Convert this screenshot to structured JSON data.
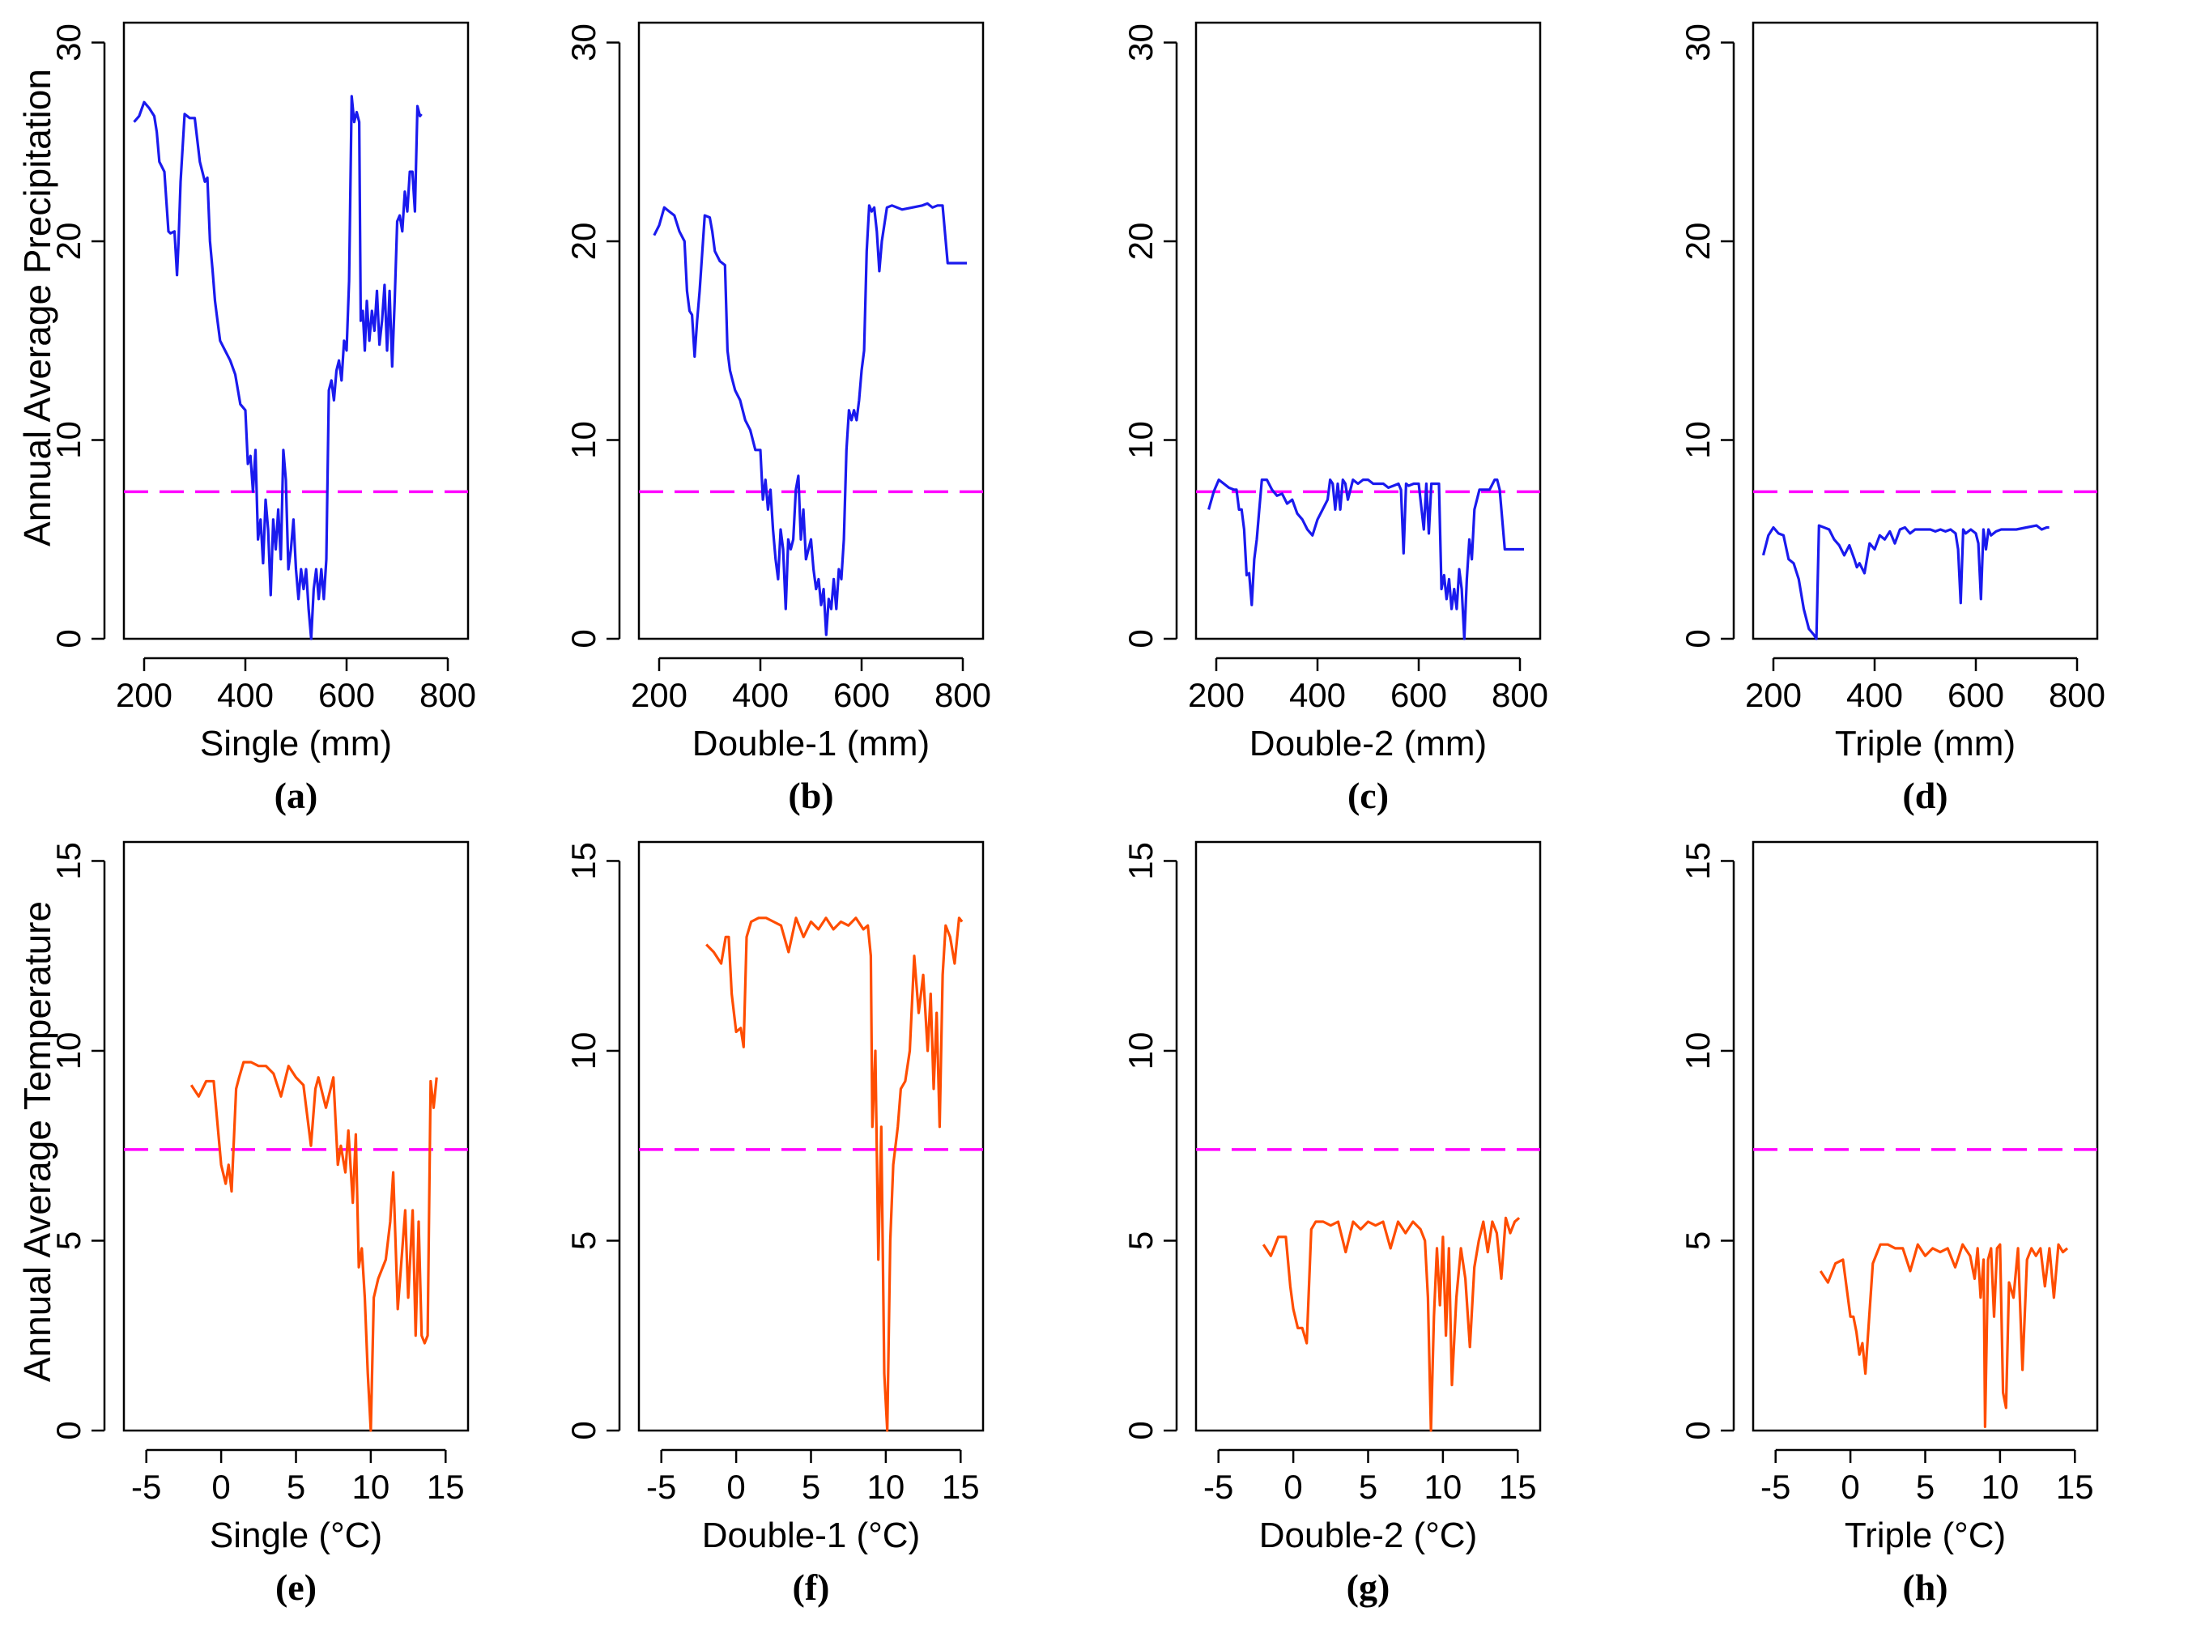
{
  "figure": {
    "ylabel_top": "Annual Average Precipitation",
    "ylabel_bottom": "Annual Average Temperature"
  },
  "colors": {
    "precip_line": "#1a1aee",
    "temp_line": "#ff4d00",
    "reference_line": "#ff00ff",
    "axis": "#000000"
  },
  "chart_data": [
    {
      "type": "line",
      "panel": "(a)",
      "xlabel": "Single (mm)",
      "ylabel": "Annual Average Precipitation",
      "xlim": [
        160,
        840
      ],
      "ylim": [
        0,
        31
      ],
      "xticks": [
        200,
        400,
        600,
        800
      ],
      "yticks": [
        0,
        10,
        20,
        30
      ],
      "reference_y": 7.4,
      "series_color": "precip",
      "x": [
        180,
        190,
        200,
        210,
        220,
        225,
        230,
        240,
        248,
        252,
        260,
        265,
        268,
        272,
        280,
        290,
        300,
        310,
        320,
        325,
        330,
        335,
        340,
        345,
        350,
        360,
        370,
        380,
        390,
        400,
        405,
        410,
        415,
        420,
        425,
        430,
        435,
        440,
        445,
        450,
        455,
        460,
        465,
        470,
        475,
        480,
        485,
        490,
        495,
        500,
        505,
        510,
        515,
        520,
        525,
        530,
        535,
        540,
        545,
        550,
        555,
        560,
        565,
        570,
        575,
        580,
        585,
        590,
        595,
        600,
        605,
        610,
        615,
        620,
        625,
        628,
        632,
        636,
        640,
        645,
        650,
        655,
        660,
        665,
        670,
        675,
        680,
        685,
        690,
        695,
        700,
        705,
        710,
        715,
        720,
        725,
        730,
        735,
        740,
        745,
        748
      ],
      "y": [
        26,
        26.3,
        27,
        26.7,
        26.3,
        25.5,
        24,
        23.5,
        20.5,
        20.4,
        20.5,
        18.3,
        20,
        23,
        26.4,
        26.2,
        26.2,
        24,
        23,
        23.2,
        20,
        18.6,
        17,
        16,
        15,
        14.5,
        14,
        13.3,
        11.8,
        11.5,
        8.8,
        9.2,
        7.4,
        9.5,
        5,
        6,
        3.8,
        7,
        5.5,
        2.2,
        6,
        4.5,
        6.5,
        4,
        9.5,
        8,
        3.5,
        4.5,
        6,
        3.5,
        2,
        3.5,
        2.5,
        3.5,
        1.5,
        0,
        2.5,
        3.5,
        2,
        3.5,
        2,
        4,
        12.5,
        13,
        12,
        13.5,
        14,
        13,
        15,
        14.5,
        18,
        27.3,
        26,
        26.5,
        26,
        16,
        16.5,
        14.5,
        17,
        15,
        16.5,
        15.5,
        17.5,
        14.8,
        16,
        17.8,
        14.5,
        17.5,
        13.7,
        17,
        21,
        21.3,
        20.5,
        22.5,
        21.5,
        23.5,
        23.5,
        21.5,
        26.8,
        26.3,
        26.4
      ]
    },
    {
      "type": "line",
      "panel": "(b)",
      "xlabel": "Double-1  (mm)",
      "ylabel": "",
      "xlim": [
        160,
        840
      ],
      "ylim": [
        0,
        31
      ],
      "xticks": [
        200,
        400,
        600,
        800
      ],
      "yticks": [
        0,
        10,
        20,
        30
      ],
      "reference_y": 7.4,
      "series_color": "precip",
      "x": [
        190,
        200,
        210,
        220,
        230,
        240,
        250,
        255,
        260,
        265,
        270,
        275,
        280,
        290,
        300,
        305,
        310,
        320,
        325,
        330,
        335,
        340,
        345,
        350,
        360,
        370,
        380,
        390,
        400,
        405,
        410,
        415,
        420,
        425,
        430,
        435,
        440,
        445,
        450,
        455,
        460,
        465,
        470,
        475,
        480,
        485,
        490,
        495,
        500,
        505,
        510,
        515,
        520,
        525,
        530,
        535,
        540,
        545,
        550,
        555,
        560,
        565,
        570,
        575,
        580,
        585,
        590,
        595,
        600,
        605,
        610,
        615,
        620,
        625,
        630,
        635,
        640,
        650,
        660,
        680,
        700,
        720,
        730,
        740,
        750,
        760,
        770,
        780,
        790,
        800,
        808
      ],
      "y": [
        20.3,
        20.8,
        21.7,
        21.5,
        21.3,
        20.5,
        20,
        17.5,
        16.5,
        16.3,
        14.2,
        16,
        17.5,
        21.3,
        21.2,
        20.5,
        19.5,
        19,
        18.9,
        18.8,
        14.5,
        13.5,
        13,
        12.5,
        12,
        11,
        10.5,
        9.5,
        9.5,
        7,
        8,
        6.5,
        7.5,
        5.5,
        4,
        3,
        5.5,
        4.5,
        1.5,
        5,
        4.5,
        5,
        7.5,
        8.2,
        5,
        6.5,
        4,
        4.5,
        5,
        3.5,
        2.5,
        3,
        1.7,
        2.5,
        0.2,
        2,
        1.5,
        3,
        1.5,
        3.5,
        3,
        5,
        9.5,
        11.5,
        11,
        11.5,
        11,
        12,
        13.5,
        14.5,
        19.5,
        21.8,
        21.5,
        21.7,
        20.5,
        18.5,
        20,
        21.7,
        21.8,
        21.6,
        21.7,
        21.8,
        21.9,
        21.7,
        21.8,
        21.8,
        18.9,
        18.9,
        18.9,
        18.9,
        18.9
      ]
    },
    {
      "type": "line",
      "panel": "(c)",
      "xlabel": "Double-2  (mm)",
      "ylabel": "",
      "xlim": [
        160,
        840
      ],
      "ylim": [
        0,
        31
      ],
      "xticks": [
        200,
        400,
        600,
        800
      ],
      "yticks": [
        0,
        10,
        20,
        30
      ],
      "reference_y": 7.4,
      "series_color": "precip",
      "x": [
        185,
        195,
        205,
        215,
        225,
        235,
        240,
        245,
        250,
        255,
        260,
        265,
        270,
        275,
        280,
        285,
        290,
        300,
        310,
        320,
        330,
        340,
        350,
        360,
        370,
        380,
        390,
        400,
        410,
        420,
        425,
        430,
        435,
        440,
        445,
        450,
        455,
        460,
        470,
        480,
        490,
        500,
        510,
        520,
        530,
        540,
        550,
        560,
        565,
        570,
        575,
        580,
        590,
        600,
        610,
        615,
        620,
        625,
        630,
        635,
        640,
        645,
        650,
        655,
        660,
        665,
        670,
        675,
        680,
        685,
        690,
        695,
        700,
        705,
        710,
        720,
        730,
        740,
        750,
        755,
        760,
        770,
        780,
        790,
        800,
        808
      ],
      "y": [
        6.5,
        7.4,
        8,
        7.8,
        7.6,
        7.5,
        7.5,
        6.5,
        6.5,
        5.5,
        3.2,
        3.3,
        1.7,
        4,
        5,
        6.5,
        8,
        8,
        7.5,
        7.2,
        7.3,
        6.8,
        7,
        6.3,
        6,
        5.5,
        5.2,
        6,
        6.5,
        7,
        8,
        7.8,
        6.5,
        7.8,
        6.5,
        8,
        7.8,
        7,
        8,
        7.8,
        8,
        8,
        7.8,
        7.8,
        7.8,
        7.6,
        7.7,
        7.8,
        7.5,
        4.3,
        7.8,
        7.7,
        7.8,
        7.8,
        5.5,
        7.8,
        5.3,
        7.8,
        7.8,
        7.8,
        7.8,
        2.5,
        3.2,
        2,
        3,
        1.5,
        2.5,
        1.5,
        3.5,
        2.5,
        0,
        3,
        5,
        4,
        6.5,
        7.5,
        7.5,
        7.5,
        8,
        8,
        7.5,
        4.5,
        4.5,
        4.5,
        4.5,
        4.5
      ]
    },
    {
      "type": "line",
      "panel": "(d)",
      "xlabel": "Triple  (mm)",
      "ylabel": "",
      "xlim": [
        160,
        840
      ],
      "ylim": [
        0,
        31
      ],
      "xticks": [
        200,
        400,
        600,
        800
      ],
      "yticks": [
        0,
        10,
        20,
        30
      ],
      "reference_y": 7.4,
      "series_color": "precip",
      "x": [
        180,
        190,
        200,
        210,
        220,
        230,
        240,
        250,
        260,
        270,
        280,
        285,
        290,
        300,
        310,
        320,
        330,
        340,
        350,
        360,
        365,
        370,
        380,
        390,
        400,
        410,
        420,
        430,
        440,
        450,
        460,
        470,
        480,
        490,
        500,
        510,
        520,
        530,
        540,
        550,
        560,
        565,
        570,
        575,
        580,
        590,
        600,
        605,
        610,
        615,
        620,
        625,
        630,
        640,
        650,
        660,
        680,
        700,
        720,
        730,
        740,
        745
      ],
      "y": [
        4.2,
        5.2,
        5.6,
        5.3,
        5.2,
        4,
        3.8,
        3,
        1.5,
        0.5,
        0.2,
        0,
        5.7,
        5.6,
        5.5,
        5,
        4.7,
        4.2,
        4.7,
        4,
        3.6,
        3.8,
        3.3,
        4.8,
        4.5,
        5.2,
        5,
        5.4,
        4.8,
        5.5,
        5.6,
        5.3,
        5.5,
        5.5,
        5.5,
        5.5,
        5.4,
        5.5,
        5.4,
        5.5,
        5.3,
        4.5,
        1.8,
        5.5,
        5.3,
        5.5,
        5.3,
        4.8,
        2,
        5.5,
        4.5,
        5.5,
        5.2,
        5.4,
        5.5,
        5.5,
        5.5,
        5.6,
        5.7,
        5.5,
        5.6,
        5.6
      ]
    },
    {
      "type": "line",
      "panel": "(e)",
      "xlabel": "Single  (°C)",
      "ylabel": "Annual Average Temperature",
      "xlim": [
        -6.5,
        16.5
      ],
      "ylim": [
        0,
        15.5
      ],
      "xticks": [
        -5,
        0,
        5,
        10,
        15
      ],
      "yticks": [
        0,
        5,
        10,
        15
      ],
      "reference_y": 7.4,
      "series_color": "temp",
      "x": [
        -2,
        -1.5,
        -1,
        -0.5,
        0,
        0.3,
        0.5,
        0.7,
        1,
        1.2,
        1.5,
        2,
        2.5,
        3,
        3.5,
        4,
        4.5,
        5,
        5.5,
        6,
        6.3,
        6.5,
        7,
        7.5,
        7.8,
        8,
        8.3,
        8.5,
        8.8,
        9,
        9.2,
        9.4,
        9.6,
        9.8,
        10,
        10.2,
        10.5,
        11,
        11.3,
        11.5,
        11.8,
        12,
        12.3,
        12.5,
        12.8,
        13,
        13.2,
        13.4,
        13.6,
        13.8,
        14,
        14.2,
        14.4
      ],
      "y": [
        9.1,
        8.8,
        9.2,
        9.2,
        7,
        6.5,
        7,
        6.3,
        9,
        9.3,
        9.7,
        9.7,
        9.6,
        9.6,
        9.4,
        8.8,
        9.6,
        9.3,
        9.1,
        7.5,
        9,
        9.3,
        8.5,
        9.3,
        7,
        7.5,
        6.8,
        7.9,
        6,
        7.8,
        4.3,
        4.8,
        3.5,
        1.5,
        0,
        3.5,
        4,
        4.5,
        5.5,
        6.8,
        3.2,
        4.2,
        5.8,
        3.5,
        5.8,
        2.5,
        5.5,
        2.5,
        2.3,
        2.5,
        9.2,
        8.5,
        9.3
      ]
    },
    {
      "type": "line",
      "panel": "(f)",
      "xlabel": "Double-1 (°C)",
      "ylabel": "",
      "xlim": [
        -6.5,
        16.5
      ],
      "ylim": [
        0,
        15.5
      ],
      "xticks": [
        -5,
        0,
        5,
        10,
        15
      ],
      "yticks": [
        0,
        5,
        10,
        15
      ],
      "reference_y": 7.4,
      "series_color": "temp",
      "x": [
        -2,
        -1.5,
        -1,
        -0.7,
        -0.5,
        -0.3,
        0,
        0.3,
        0.5,
        0.7,
        1,
        1.5,
        2,
        2.5,
        3,
        3.5,
        4,
        4.5,
        5,
        5.5,
        6,
        6.5,
        7,
        7.5,
        8,
        8.5,
        8.8,
        9,
        9.1,
        9.3,
        9.5,
        9.7,
        9.9,
        10.1,
        10.3,
        10.5,
        10.8,
        11,
        11.3,
        11.6,
        11.9,
        12.2,
        12.5,
        12.8,
        13,
        13.2,
        13.4,
        13.6,
        13.8,
        14,
        14.3,
        14.6,
        14.9,
        15.1
      ],
      "y": [
        12.8,
        12.6,
        12.3,
        13,
        13,
        11.5,
        10.5,
        10.6,
        10.1,
        13,
        13.4,
        13.5,
        13.5,
        13.4,
        13.3,
        12.6,
        13.5,
        13,
        13.4,
        13.2,
        13.5,
        13.2,
        13.4,
        13.3,
        13.5,
        13.2,
        13.3,
        12.5,
        8,
        10,
        4.5,
        8,
        1.5,
        0,
        5,
        7,
        8,
        9,
        9.2,
        10,
        12.5,
        11,
        12,
        10,
        11.5,
        9,
        11,
        8,
        12,
        13.3,
        13,
        12.3,
        13.5,
        13.4
      ]
    },
    {
      "type": "line",
      "panel": "(g)",
      "xlabel": "Double-2  (°C)",
      "ylabel": "",
      "xlim": [
        -6.5,
        16.5
      ],
      "ylim": [
        0,
        15.5
      ],
      "xticks": [
        -5,
        0,
        5,
        10,
        15
      ],
      "yticks": [
        0,
        5,
        10,
        15
      ],
      "reference_y": 7.4,
      "series_color": "temp",
      "x": [
        -2,
        -1.5,
        -1,
        -0.5,
        -0.2,
        0,
        0.3,
        0.6,
        0.9,
        1.2,
        1.5,
        2,
        2.5,
        3,
        3.5,
        4,
        4.5,
        5,
        5.5,
        6,
        6.5,
        7,
        7.5,
        8,
        8.5,
        8.8,
        9,
        9.2,
        9.4,
        9.6,
        9.8,
        10,
        10.2,
        10.4,
        10.6,
        10.9,
        11.2,
        11.5,
        11.8,
        12.1,
        12.4,
        12.7,
        13,
        13.3,
        13.6,
        13.9,
        14.2,
        14.5,
        14.8,
        15.1
      ],
      "y": [
        4.9,
        4.6,
        5.1,
        5.1,
        3.8,
        3.2,
        2.7,
        2.7,
        2.3,
        5.3,
        5.5,
        5.5,
        5.4,
        5.5,
        4.7,
        5.5,
        5.3,
        5.5,
        5.4,
        5.5,
        4.8,
        5.5,
        5.2,
        5.5,
        5.3,
        5,
        3.5,
        0,
        3,
        4.8,
        3.3,
        5.1,
        2.5,
        4.8,
        1.2,
        3.5,
        4.8,
        4,
        2.2,
        4.3,
        5,
        5.5,
        4.7,
        5.5,
        5.2,
        4,
        5.6,
        5.2,
        5.5,
        5.6
      ]
    },
    {
      "type": "line",
      "panel": "(h)",
      "xlabel": "Triple  (°C)",
      "ylabel": "",
      "xlim": [
        -6.5,
        16.5
      ],
      "ylim": [
        0,
        15.5
      ],
      "xticks": [
        -5,
        0,
        5,
        10,
        15
      ],
      "yticks": [
        0,
        5,
        10,
        15
      ],
      "reference_y": 7.4,
      "series_color": "temp",
      "x": [
        -2,
        -1.5,
        -1,
        -0.5,
        0,
        0.2,
        0.4,
        0.6,
        0.8,
        1,
        1.5,
        2,
        2.5,
        3,
        3.5,
        4,
        4.5,
        5,
        5.5,
        6,
        6.5,
        7,
        7.5,
        8,
        8.3,
        8.5,
        8.7,
        8.9,
        9,
        9.2,
        9.4,
        9.6,
        9.8,
        10,
        10.2,
        10.4,
        10.6,
        10.9,
        11.2,
        11.5,
        11.8,
        12.1,
        12.4,
        12.7,
        13,
        13.3,
        13.6,
        13.9,
        14.2,
        14.5
      ],
      "y": [
        4.2,
        3.9,
        4.4,
        4.5,
        3,
        3,
        2.6,
        2,
        2.3,
        1.5,
        4.4,
        4.9,
        4.9,
        4.8,
        4.8,
        4.2,
        4.9,
        4.6,
        4.8,
        4.7,
        4.8,
        4.3,
        4.9,
        4.6,
        4,
        4.8,
        3.5,
        4.5,
        0.1,
        4.5,
        4.8,
        3,
        4.8,
        4.9,
        1,
        0.6,
        3.9,
        3.5,
        4.8,
        1.6,
        4.5,
        4.8,
        4.6,
        4.8,
        3.8,
        4.8,
        3.5,
        4.9,
        4.7,
        4.8
      ]
    }
  ]
}
